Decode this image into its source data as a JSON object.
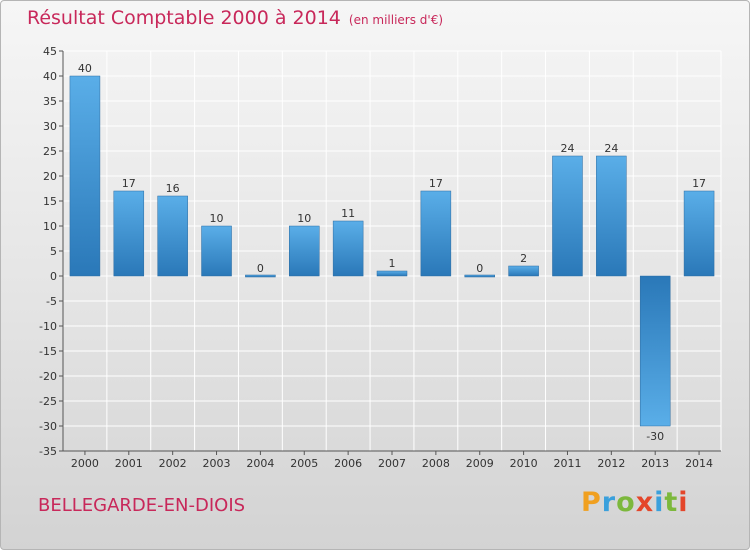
{
  "header": {
    "title": "Résultat Comptable 2000 à 2014",
    "unit": "(en milliers d'€)"
  },
  "footer": {
    "commune": "BELLEGARDE-EN-DIOIS",
    "logo_letters": [
      "P",
      "r",
      "o",
      "x",
      "i",
      "t",
      "i"
    ],
    "logo_colors": [
      "#f0a020",
      "#3aa0dc",
      "#7cb83c",
      "#e4462a",
      "#3aa0dc",
      "#7cb83c",
      "#e4462a"
    ]
  },
  "colors": {
    "bar_light": "#5aaee8",
    "bar_dark": "#2a78b8",
    "title": "#c8285a",
    "grid": "#ffffff"
  },
  "chart_data": {
    "type": "bar",
    "title": "Résultat Comptable 2000 à 2014",
    "subtitle": "(en milliers d'€)",
    "categories": [
      "2000",
      "2001",
      "2002",
      "2003",
      "2004",
      "2005",
      "2006",
      "2007",
      "2008",
      "2009",
      "2010",
      "2011",
      "2012",
      "2013",
      "2014"
    ],
    "values": [
      40,
      17,
      16,
      10,
      0,
      10,
      11,
      1,
      17,
      0,
      2,
      24,
      24,
      -30,
      17
    ],
    "ylim": [
      -35,
      45
    ],
    "ytick_step": 5,
    "grid": true,
    "xlabel": "",
    "ylabel": ""
  }
}
